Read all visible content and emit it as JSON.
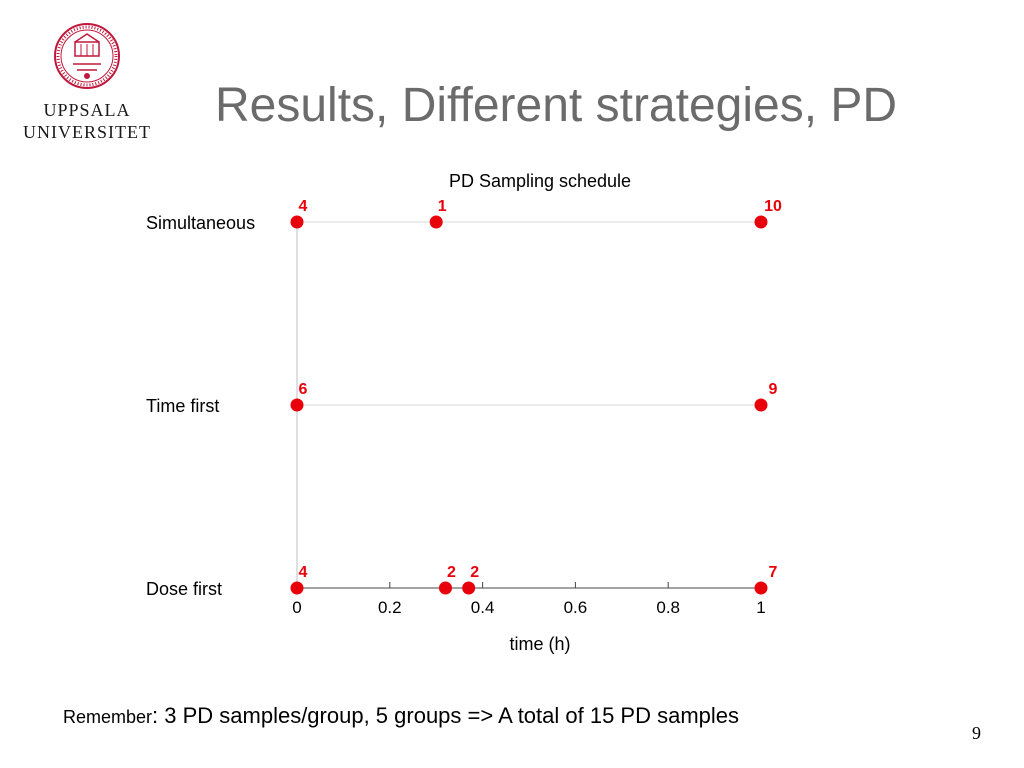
{
  "logo": {
    "line1": "UPPSALA",
    "line2": "UNIVERSITET",
    "seal_text": "SIGILLUM UNIVERSITATIS UPSALIENSIS",
    "color": "#c0183c"
  },
  "slide": {
    "title": "Results, Different strategies, PD",
    "footnote_lead": "Remember",
    "footnote_rest": ": 3 PD samples/group, 5 groups => A total of 15 PD samples",
    "page_number": "9"
  },
  "chart_data": {
    "type": "scatter",
    "title": "PD Sampling schedule",
    "xlabel": "time (h)",
    "ylabel": "",
    "xlim": [
      0,
      1
    ],
    "xticks": [
      "0",
      "0.2",
      "0.4",
      "0.6",
      "0.8",
      "1"
    ],
    "grid": true,
    "marker_color": "#e8000b",
    "label_color": "#e8000b",
    "categories": [
      "Simultaneous",
      "Time first",
      "Dose first"
    ],
    "series": [
      {
        "points": [
          {
            "x": 0,
            "n": "4"
          },
          {
            "x": 0.3,
            "n": "1"
          },
          {
            "x": 1,
            "n": "10"
          }
        ]
      },
      {
        "points": [
          {
            "x": 0,
            "n": "6"
          },
          {
            "x": 1,
            "n": "9"
          }
        ]
      },
      {
        "points": [
          {
            "x": 0,
            "n": "4"
          },
          {
            "x": 0.32,
            "n": "2"
          },
          {
            "x": 0.37,
            "n": "2"
          },
          {
            "x": 1,
            "n": "7"
          }
        ]
      }
    ]
  }
}
